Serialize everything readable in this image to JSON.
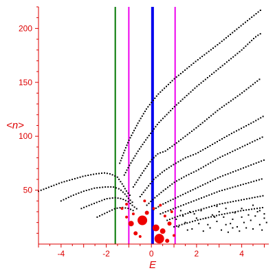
{
  "chart_data": {
    "type": "scatter",
    "title": "",
    "xlabel": "E",
    "ylabel": "<n>",
    "xlim": [
      -5,
      5.2
    ],
    "ylim": [
      0,
      220
    ],
    "xticks": [
      -4,
      -2,
      0,
      2,
      4
    ],
    "yticks": [
      50,
      100,
      150,
      200
    ],
    "grid": false,
    "legend": "none",
    "colors": {
      "axis": "#dd0000",
      "points": "#000000",
      "highlight_points": "#ee0000",
      "line_green": "#007700",
      "line_magenta": "#ee00ee",
      "line_blue": "#0000ee"
    },
    "vertical_lines": [
      {
        "x": -1.6,
        "color": "#007700",
        "width": 2
      },
      {
        "x": -1.0,
        "color": "#ee00ee",
        "width": 2
      },
      {
        "x": 0.05,
        "color": "#0000ee",
        "width": 4
      },
      {
        "x": 1.05,
        "color": "#ee00ee",
        "width": 2
      }
    ],
    "curves": [
      {
        "points": [
          [
            -5,
            49
          ],
          [
            -4.5,
            53
          ],
          [
            -4,
            57
          ],
          [
            -3.5,
            60
          ],
          [
            -3,
            63
          ],
          [
            -2.5,
            65
          ],
          [
            -2.1,
            66
          ],
          [
            -1.8,
            65
          ],
          [
            -1.5,
            62
          ],
          [
            -1.3,
            56
          ],
          [
            -1.1,
            49
          ],
          [
            -0.9,
            44
          ]
        ]
      },
      {
        "points": [
          [
            -4,
            40
          ],
          [
            -3.5,
            45
          ],
          [
            -3,
            49
          ],
          [
            -2.5,
            52
          ],
          [
            -2,
            53
          ],
          [
            -1.7,
            53
          ],
          [
            -1.4,
            51
          ],
          [
            -1.2,
            47
          ],
          [
            -1,
            42
          ],
          [
            -0.8,
            38
          ]
        ]
      },
      {
        "points": [
          [
            -3.1,
            33
          ],
          [
            -2.5,
            38
          ],
          [
            -2,
            42
          ],
          [
            -1.6,
            43
          ],
          [
            -1.3,
            42
          ],
          [
            -1,
            39
          ],
          [
            -0.8,
            35
          ],
          [
            -0.6,
            32
          ]
        ]
      },
      {
        "points": [
          [
            -2.4,
            25
          ],
          [
            -2,
            29
          ],
          [
            -1.6,
            33
          ],
          [
            -1.3,
            34
          ],
          [
            -1,
            33
          ],
          [
            -0.7,
            30
          ]
        ]
      },
      {
        "points": [
          [
            -1.4,
            75
          ],
          [
            -1.2,
            86
          ],
          [
            -1,
            96
          ],
          [
            -0.6,
            112
          ],
          [
            -0.2,
            126
          ],
          [
            0.3,
            139
          ],
          [
            1,
            153
          ],
          [
            2,
            170
          ],
          [
            3,
            186
          ],
          [
            4,
            203
          ],
          [
            4.9,
            218
          ]
        ]
      },
      {
        "points": [
          [
            -1.2,
            64
          ],
          [
            -1,
            72
          ],
          [
            -0.6,
            86
          ],
          [
            -0.2,
            98
          ],
          [
            0.3,
            112
          ],
          [
            1,
            127
          ],
          [
            2,
            146
          ],
          [
            3,
            163
          ],
          [
            4,
            180
          ],
          [
            4.6,
            192
          ],
          [
            4.9,
            196
          ]
        ]
      },
      {
        "points": [
          [
            -0.8,
            53
          ],
          [
            -0.4,
            66
          ],
          [
            0,
            78
          ],
          [
            0.3,
            84
          ],
          [
            0.6,
            86
          ],
          [
            1,
            92
          ],
          [
            2,
            108
          ],
          [
            3,
            125
          ],
          [
            4,
            140
          ],
          [
            4.8,
            153
          ]
        ]
      },
      {
        "points": [
          [
            -0.5,
            44
          ],
          [
            -0.2,
            52
          ],
          [
            0.1,
            60
          ],
          [
            0.5,
            67
          ],
          [
            1,
            74
          ],
          [
            1.5,
            80
          ],
          [
            2,
            84
          ],
          [
            2.5,
            90
          ],
          [
            3.5,
            102
          ],
          [
            4.5,
            113
          ],
          [
            5,
            119
          ]
        ]
      },
      {
        "points": [
          [
            -0.2,
            36
          ],
          [
            0.1,
            42
          ],
          [
            0.5,
            49
          ],
          [
            1,
            57
          ],
          [
            1.5,
            63
          ],
          [
            2,
            68
          ],
          [
            2.5,
            74
          ],
          [
            3,
            80
          ],
          [
            4,
            90
          ],
          [
            5,
            100
          ]
        ]
      },
      {
        "points": [
          [
            0.1,
            32
          ],
          [
            0.5,
            37
          ],
          [
            1,
            42
          ],
          [
            1.5,
            47
          ],
          [
            2,
            52
          ],
          [
            2.5,
            57
          ],
          [
            3,
            62
          ],
          [
            4,
            70
          ],
          [
            5,
            78
          ]
        ]
      },
      {
        "points": [
          [
            0.4,
            28
          ],
          [
            1,
            33
          ],
          [
            1.5,
            37
          ],
          [
            2,
            41
          ],
          [
            2.5,
            45
          ],
          [
            3,
            49
          ],
          [
            4,
            55
          ],
          [
            5,
            61
          ]
        ]
      },
      {
        "points": [
          [
            0.7,
            22
          ],
          [
            1.2,
            26
          ],
          [
            2,
            31
          ],
          [
            2.5,
            34
          ],
          [
            3,
            37
          ],
          [
            4,
            41
          ],
          [
            5,
            45
          ]
        ]
      },
      {
        "points": [
          [
            1,
            16
          ],
          [
            1.5,
            19
          ],
          [
            2,
            22
          ],
          [
            3,
            27
          ],
          [
            4,
            31
          ],
          [
            5,
            34
          ]
        ]
      }
    ],
    "scatter_points": [
      [
        1.2,
        16
      ],
      [
        1.5,
        20
      ],
      [
        1.8,
        14
      ],
      [
        2.1,
        19
      ],
      [
        2.4,
        24
      ],
      [
        2.6,
        15
      ],
      [
        2.9,
        21
      ],
      [
        3.1,
        13
      ],
      [
        3.3,
        18
      ],
      [
        3.6,
        23
      ],
      [
        3.8,
        16
      ],
      [
        4.1,
        20
      ],
      [
        4.3,
        27
      ],
      [
        4.5,
        14
      ],
      [
        4.8,
        18
      ],
      [
        5,
        24
      ],
      [
        1.4,
        26
      ],
      [
        1.9,
        28
      ],
      [
        2.3,
        12
      ],
      [
        2.7,
        27
      ],
      [
        3,
        30
      ],
      [
        3.4,
        11
      ],
      [
        3.7,
        29
      ],
      [
        4,
        25
      ],
      [
        4.4,
        22
      ],
      [
        4.7,
        30
      ],
      [
        5.1,
        20
      ],
      [
        1.6,
        13
      ],
      [
        2,
        24
      ],
      [
        3.2,
        25
      ],
      [
        3.9,
        12
      ],
      [
        4.6,
        26
      ],
      [
        4.9,
        13
      ],
      [
        1.1,
        23
      ],
      [
        2.5,
        18
      ],
      [
        3.5,
        19
      ],
      [
        4.2,
        15
      ],
      [
        4.8,
        31
      ],
      [
        2.2,
        31
      ],
      [
        3.3,
        33
      ],
      [
        4,
        33
      ],
      [
        2.8,
        25
      ],
      [
        1.7,
        30
      ],
      [
        3.6,
        15
      ],
      [
        4.5,
        36
      ],
      [
        5,
        28
      ],
      [
        2.9,
        35
      ],
      [
        1.3,
        31
      ]
    ],
    "highlight_points": [
      {
        "x": -0.4,
        "y": 22,
        "size": 7
      },
      {
        "x": -0.9,
        "y": 19,
        "size": 4
      },
      {
        "x": 0.2,
        "y": 15,
        "size": 5
      },
      {
        "x": 0.5,
        "y": 12,
        "size": 4
      },
      {
        "x": 0.35,
        "y": 5,
        "size": 7
      },
      {
        "x": -0.7,
        "y": 10,
        "size": 3
      },
      {
        "x": 0.8,
        "y": 19,
        "size": 3
      },
      {
        "x": -0.2,
        "y": 29,
        "size": 3
      },
      {
        "x": -1.3,
        "y": 33,
        "size": 2
      },
      {
        "x": -1.1,
        "y": 37,
        "size": 2
      },
      {
        "x": -0.3,
        "y": 40,
        "size": 2
      },
      {
        "x": 0.6,
        "y": 26,
        "size": 2
      },
      {
        "x": 1,
        "y": 8,
        "size": 2
      },
      {
        "x": 0.1,
        "y": 33,
        "size": 2
      },
      {
        "x": -0.8,
        "y": 28,
        "size": 2
      },
      {
        "x": 0.7,
        "y": 3,
        "size": 3
      },
      {
        "x": -0.5,
        "y": 7,
        "size": 2
      },
      {
        "x": 0.9,
        "y": 30,
        "size": 2
      },
      {
        "x": -1.1,
        "y": 25,
        "size": 2
      },
      {
        "x": 0.4,
        "y": 36,
        "size": 2
      }
    ]
  }
}
